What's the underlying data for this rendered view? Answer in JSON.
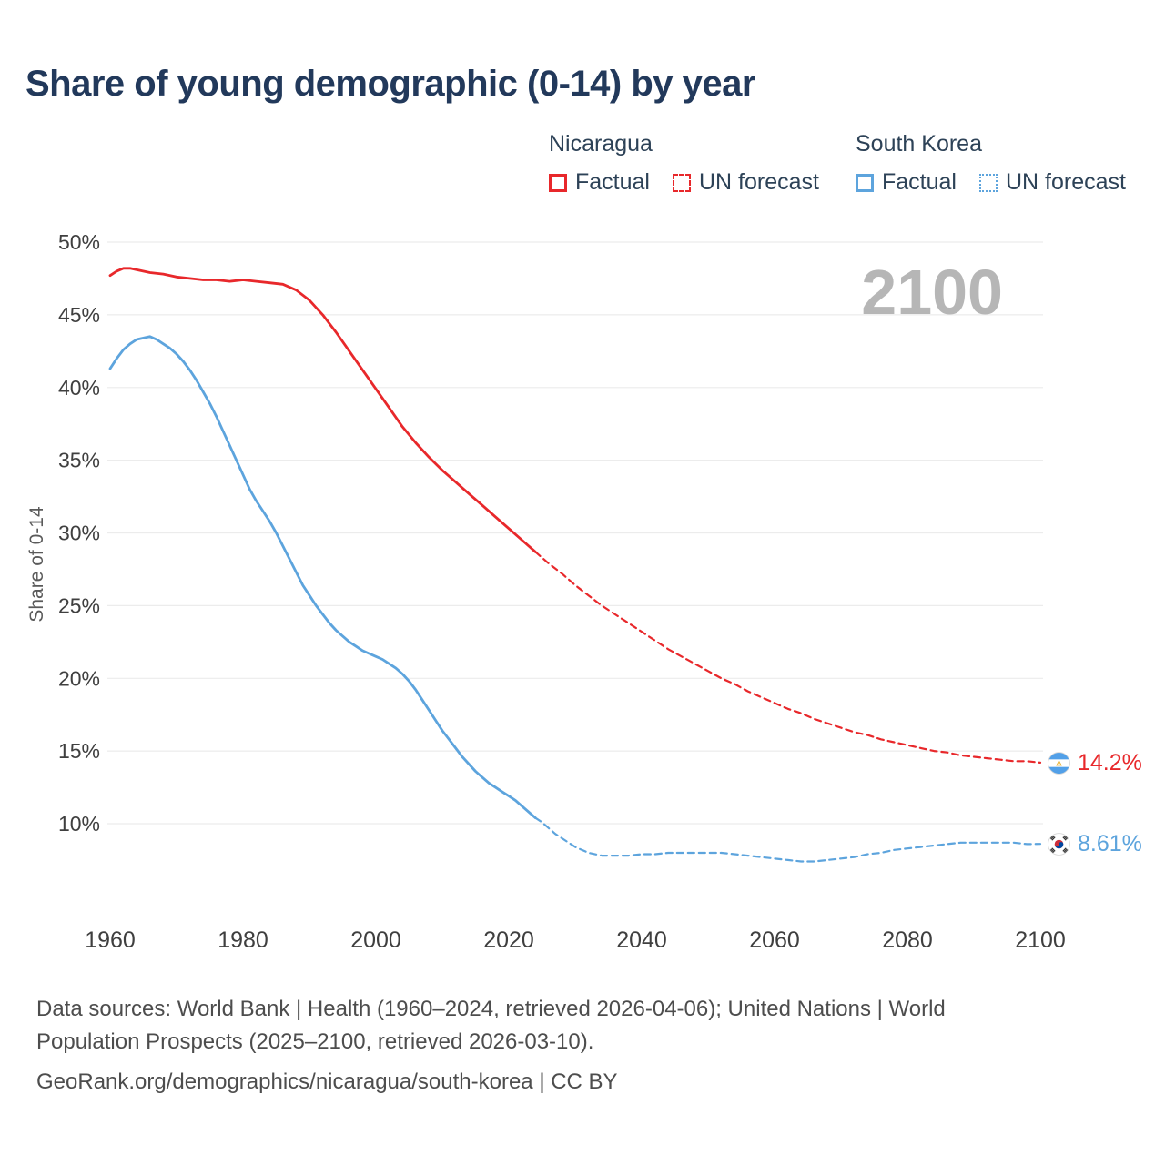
{
  "title": "Share of young demographic (0-14) by year",
  "watermark": "2100",
  "legend": {
    "groups": [
      {
        "country": "Nicaragua",
        "color": "#e8282b",
        "items": [
          {
            "label": "Factual",
            "style": "solid"
          },
          {
            "label": "UN forecast",
            "style": "dashed"
          }
        ]
      },
      {
        "country": "South Korea",
        "color": "#5da4dd",
        "items": [
          {
            "label": "Factual",
            "style": "solid"
          },
          {
            "label": "UN forecast",
            "style": "dotted"
          }
        ]
      }
    ]
  },
  "end_labels": [
    {
      "series": "Nicaragua",
      "flag": "nicaragua-flag",
      "value": "14.2%",
      "color": "#e8282b"
    },
    {
      "series": "South Korea",
      "flag": "south-korea-flag",
      "value": "8.61%",
      "color": "#5da4dd"
    }
  ],
  "footer": [
    "Data sources: World Bank | Health (1960–2024, retrieved 2026-04-06); United Nations | World",
    "Population Prospects (2025–2100, retrieved 2026-03-10).",
    "GeoRank.org/demographics/nicaragua/south-korea | CC BY"
  ],
  "chart_data": {
    "type": "line",
    "title": "Share of young demographic (0-14) by year",
    "xlabel": "",
    "ylabel": "Share of 0-14",
    "xlim": [
      1958,
      2112
    ],
    "ylim": [
      6,
      51
    ],
    "x_ticks": [
      1960,
      1980,
      2000,
      2020,
      2040,
      2060,
      2080,
      2100
    ],
    "y_ticks": [
      10,
      15,
      20,
      25,
      30,
      35,
      40,
      45,
      50
    ],
    "grid": true,
    "legend_position": "top-right",
    "forecast_start": 2024,
    "series": [
      {
        "name": "Nicaragua — Factual",
        "id": "nicaragua-factual",
        "color": "#e8282b",
        "line_style": "solid",
        "points": [
          [
            1960,
            47.7
          ],
          [
            1961,
            48.0
          ],
          [
            1962,
            48.2
          ],
          [
            1963,
            48.2
          ],
          [
            1964,
            48.1
          ],
          [
            1966,
            47.9
          ],
          [
            1968,
            47.8
          ],
          [
            1970,
            47.6
          ],
          [
            1972,
            47.5
          ],
          [
            1974,
            47.4
          ],
          [
            1976,
            47.4
          ],
          [
            1978,
            47.3
          ],
          [
            1980,
            47.4
          ],
          [
            1982,
            47.3
          ],
          [
            1984,
            47.2
          ],
          [
            1986,
            47.1
          ],
          [
            1988,
            46.7
          ],
          [
            1990,
            46.0
          ],
          [
            1992,
            45.0
          ],
          [
            1994,
            43.8
          ],
          [
            1996,
            42.5
          ],
          [
            1998,
            41.2
          ],
          [
            2000,
            39.9
          ],
          [
            2002,
            38.6
          ],
          [
            2004,
            37.3
          ],
          [
            2006,
            36.2
          ],
          [
            2008,
            35.2
          ],
          [
            2010,
            34.3
          ],
          [
            2012,
            33.5
          ],
          [
            2014,
            32.7
          ],
          [
            2016,
            31.9
          ],
          [
            2018,
            31.1
          ],
          [
            2020,
            30.3
          ],
          [
            2022,
            29.5
          ],
          [
            2024,
            28.7
          ]
        ]
      },
      {
        "name": "Nicaragua — UN forecast",
        "id": "nicaragua-un-forecast",
        "color": "#e8282b",
        "line_style": "dashed",
        "points": [
          [
            2024,
            28.7
          ],
          [
            2026,
            27.9
          ],
          [
            2028,
            27.2
          ],
          [
            2030,
            26.4
          ],
          [
            2032,
            25.7
          ],
          [
            2034,
            25.0
          ],
          [
            2036,
            24.4
          ],
          [
            2038,
            23.8
          ],
          [
            2040,
            23.2
          ],
          [
            2042,
            22.6
          ],
          [
            2044,
            22.0
          ],
          [
            2046,
            21.5
          ],
          [
            2048,
            21.0
          ],
          [
            2050,
            20.5
          ],
          [
            2052,
            20.0
          ],
          [
            2054,
            19.6
          ],
          [
            2056,
            19.1
          ],
          [
            2058,
            18.7
          ],
          [
            2060,
            18.3
          ],
          [
            2062,
            17.9
          ],
          [
            2064,
            17.6
          ],
          [
            2066,
            17.2
          ],
          [
            2068,
            16.9
          ],
          [
            2070,
            16.6
          ],
          [
            2072,
            16.3
          ],
          [
            2074,
            16.1
          ],
          [
            2076,
            15.8
          ],
          [
            2078,
            15.6
          ],
          [
            2080,
            15.4
          ],
          [
            2082,
            15.2
          ],
          [
            2084,
            15.0
          ],
          [
            2086,
            14.9
          ],
          [
            2088,
            14.7
          ],
          [
            2090,
            14.6
          ],
          [
            2092,
            14.5
          ],
          [
            2094,
            14.4
          ],
          [
            2096,
            14.3
          ],
          [
            2098,
            14.3
          ],
          [
            2100,
            14.2
          ]
        ]
      },
      {
        "name": "South Korea — Factual",
        "id": "south-korea-factual",
        "color": "#5da4dd",
        "line_style": "solid",
        "points": [
          [
            1960,
            41.3
          ],
          [
            1961,
            42.0
          ],
          [
            1962,
            42.6
          ],
          [
            1963,
            43.0
          ],
          [
            1964,
            43.3
          ],
          [
            1965,
            43.4
          ],
          [
            1966,
            43.5
          ],
          [
            1967,
            43.3
          ],
          [
            1968,
            43.0
          ],
          [
            1969,
            42.7
          ],
          [
            1970,
            42.3
          ],
          [
            1971,
            41.8
          ],
          [
            1972,
            41.2
          ],
          [
            1973,
            40.5
          ],
          [
            1974,
            39.7
          ],
          [
            1975,
            38.9
          ],
          [
            1976,
            38.0
          ],
          [
            1977,
            37.0
          ],
          [
            1978,
            36.0
          ],
          [
            1979,
            35.0
          ],
          [
            1980,
            34.0
          ],
          [
            1981,
            33.0
          ],
          [
            1982,
            32.2
          ],
          [
            1983,
            31.5
          ],
          [
            1984,
            30.8
          ],
          [
            1985,
            30.0
          ],
          [
            1986,
            29.1
          ],
          [
            1987,
            28.2
          ],
          [
            1988,
            27.3
          ],
          [
            1989,
            26.4
          ],
          [
            1990,
            25.7
          ],
          [
            1991,
            25.0
          ],
          [
            1992,
            24.4
          ],
          [
            1993,
            23.8
          ],
          [
            1994,
            23.3
          ],
          [
            1995,
            22.9
          ],
          [
            1996,
            22.5
          ],
          [
            1997,
            22.2
          ],
          [
            1998,
            21.9
          ],
          [
            1999,
            21.7
          ],
          [
            2000,
            21.5
          ],
          [
            2001,
            21.3
          ],
          [
            2002,
            21.0
          ],
          [
            2003,
            20.7
          ],
          [
            2004,
            20.3
          ],
          [
            2005,
            19.8
          ],
          [
            2006,
            19.2
          ],
          [
            2007,
            18.5
          ],
          [
            2008,
            17.8
          ],
          [
            2009,
            17.1
          ],
          [
            2010,
            16.4
          ],
          [
            2011,
            15.8
          ],
          [
            2012,
            15.2
          ],
          [
            2013,
            14.6
          ],
          [
            2014,
            14.1
          ],
          [
            2015,
            13.6
          ],
          [
            2016,
            13.2
          ],
          [
            2017,
            12.8
          ],
          [
            2018,
            12.5
          ],
          [
            2019,
            12.2
          ],
          [
            2020,
            11.9
          ],
          [
            2021,
            11.6
          ],
          [
            2022,
            11.2
          ],
          [
            2023,
            10.8
          ],
          [
            2024,
            10.4
          ]
        ]
      },
      {
        "name": "South Korea — UN forecast",
        "id": "south-korea-un-forecast",
        "color": "#5da4dd",
        "line_style": "dotted",
        "points": [
          [
            2024,
            10.4
          ],
          [
            2025,
            10.1
          ],
          [
            2026,
            9.7
          ],
          [
            2027,
            9.3
          ],
          [
            2028,
            9.0
          ],
          [
            2029,
            8.7
          ],
          [
            2030,
            8.4
          ],
          [
            2032,
            8.0
          ],
          [
            2034,
            7.8
          ],
          [
            2036,
            7.8
          ],
          [
            2038,
            7.8
          ],
          [
            2040,
            7.9
          ],
          [
            2042,
            7.9
          ],
          [
            2044,
            8.0
          ],
          [
            2046,
            8.0
          ],
          [
            2048,
            8.0
          ],
          [
            2050,
            8.0
          ],
          [
            2052,
            8.0
          ],
          [
            2054,
            7.9
          ],
          [
            2056,
            7.8
          ],
          [
            2058,
            7.7
          ],
          [
            2060,
            7.6
          ],
          [
            2062,
            7.5
          ],
          [
            2064,
            7.4
          ],
          [
            2066,
            7.4
          ],
          [
            2068,
            7.5
          ],
          [
            2070,
            7.6
          ],
          [
            2072,
            7.7
          ],
          [
            2074,
            7.9
          ],
          [
            2076,
            8.0
          ],
          [
            2078,
            8.2
          ],
          [
            2080,
            8.3
          ],
          [
            2082,
            8.4
          ],
          [
            2084,
            8.5
          ],
          [
            2086,
            8.6
          ],
          [
            2088,
            8.7
          ],
          [
            2090,
            8.7
          ],
          [
            2092,
            8.7
          ],
          [
            2094,
            8.7
          ],
          [
            2096,
            8.7
          ],
          [
            2098,
            8.6
          ],
          [
            2100,
            8.61
          ]
        ]
      }
    ]
  }
}
